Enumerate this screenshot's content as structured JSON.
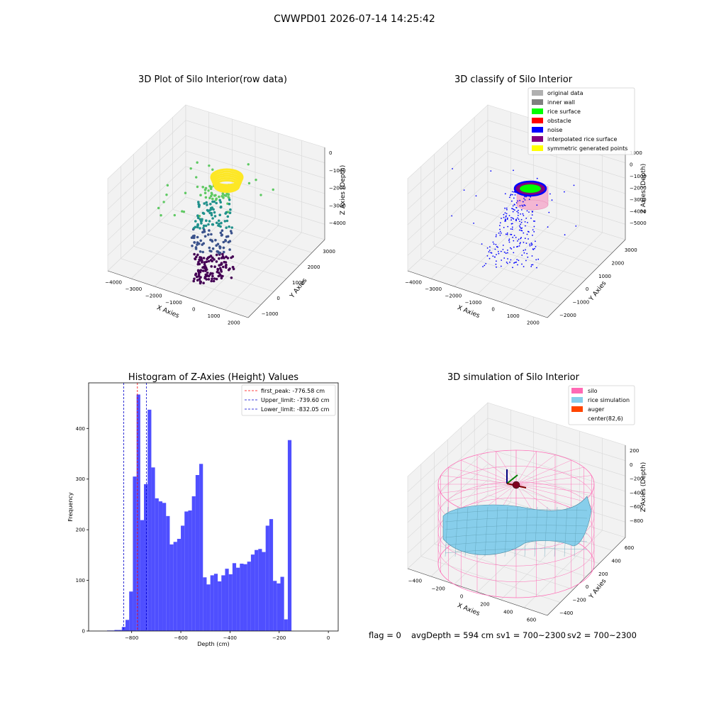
{
  "figure": {
    "suptitle": "CWWPD01 2026-07-14 14:25:42",
    "footer": {
      "flag": "flag = 0",
      "avg_depth": "avgDepth = 594 cm",
      "sv1": "sv1 = 700~2300",
      "sv2": "sv2 = 700~2300"
    }
  },
  "chart_data": [
    {
      "type": "scatter",
      "projection": "3d",
      "title": "3D Plot of Silo Interior(row data)",
      "xlabel": "X Axies",
      "ylabel": "Y Axies",
      "zlabel": "Z Axies (Depth)",
      "x_ticks": [
        "−4000",
        "−3000",
        "−2000",
        "−1000",
        "0",
        "1000",
        "2000"
      ],
      "y_ticks": [
        "−1000",
        "0",
        "1000",
        "2000",
        "3000"
      ],
      "z_ticks": [
        "0",
        "−1000",
        "−2000",
        "−3000",
        "−4000"
      ],
      "colormap": [
        "#440154",
        "#3b528b",
        "#21918c",
        "#5ec962",
        "#fde725"
      ]
    },
    {
      "type": "scatter",
      "projection": "3d",
      "title": "3D classify of Silo Interior",
      "xlabel": "X Axies",
      "ylabel": "Y Axies",
      "zlabel": "Z Axies (Depth)",
      "x_ticks": [
        "−4000",
        "−3000",
        "−2000",
        "−1000",
        "0",
        "1000",
        "2000"
      ],
      "y_ticks": [
        "−2000",
        "−1000",
        "0",
        "1000",
        "2000",
        "3000"
      ],
      "z_ticks": [
        "1000",
        "0",
        "−1000",
        "−2000",
        "−3000",
        "−4000",
        "−5000"
      ],
      "legend": [
        {
          "label": "original data",
          "color": "#b0b0b0"
        },
        {
          "label": "inner wall",
          "color": "#808080"
        },
        {
          "label": "rice surface",
          "color": "#00ff00"
        },
        {
          "label": "obstacle",
          "color": "#ff0000"
        },
        {
          "label": "noise",
          "color": "#0000ff"
        },
        {
          "label": "interpolated rice surface",
          "color": "#800080"
        },
        {
          "label": "symmetric generated points",
          "color": "#ffff00"
        }
      ]
    },
    {
      "type": "bar",
      "title": "Histogram of Z-Axies (Height) Values",
      "xlabel": "Depth (cm)",
      "ylabel": "Frequency",
      "bar_color": "#4f4fff",
      "xlim": [
        -975,
        40
      ],
      "ylim": [
        0,
        490
      ],
      "x_ticks": [
        -800,
        -600,
        -400,
        -200,
        0
      ],
      "y_ticks": [
        0,
        100,
        200,
        300,
        400
      ],
      "bin_width": 15,
      "bins": [
        {
          "x": -900,
          "value": 1
        },
        {
          "x": -885,
          "value": 1
        },
        {
          "x": -870,
          "value": 2
        },
        {
          "x": -855,
          "value": 2
        },
        {
          "x": -840,
          "value": 8
        },
        {
          "x": -825,
          "value": 22
        },
        {
          "x": -810,
          "value": 78
        },
        {
          "x": -795,
          "value": 305
        },
        {
          "x": -780,
          "value": 467
        },
        {
          "x": -765,
          "value": 219
        },
        {
          "x": -750,
          "value": 290
        },
        {
          "x": -735,
          "value": 437
        },
        {
          "x": -720,
          "value": 323
        },
        {
          "x": -705,
          "value": 262
        },
        {
          "x": -690,
          "value": 256
        },
        {
          "x": -675,
          "value": 253
        },
        {
          "x": -660,
          "value": 227
        },
        {
          "x": -645,
          "value": 171
        },
        {
          "x": -630,
          "value": 176
        },
        {
          "x": -615,
          "value": 182
        },
        {
          "x": -600,
          "value": 208
        },
        {
          "x": -585,
          "value": 236
        },
        {
          "x": -570,
          "value": 238
        },
        {
          "x": -555,
          "value": 266
        },
        {
          "x": -540,
          "value": 308
        },
        {
          "x": -525,
          "value": 330
        },
        {
          "x": -510,
          "value": 106
        },
        {
          "x": -495,
          "value": 92
        },
        {
          "x": -480,
          "value": 110
        },
        {
          "x": -465,
          "value": 113
        },
        {
          "x": -450,
          "value": 98
        },
        {
          "x": -435,
          "value": 110
        },
        {
          "x": -420,
          "value": 123
        },
        {
          "x": -405,
          "value": 112
        },
        {
          "x": -390,
          "value": 134
        },
        {
          "x": -375,
          "value": 125
        },
        {
          "x": -360,
          "value": 133
        },
        {
          "x": -345,
          "value": 132
        },
        {
          "x": -330,
          "value": 137
        },
        {
          "x": -315,
          "value": 151
        },
        {
          "x": -300,
          "value": 160
        },
        {
          "x": -285,
          "value": 162
        },
        {
          "x": -270,
          "value": 156
        },
        {
          "x": -255,
          "value": 208
        },
        {
          "x": -240,
          "value": 221
        },
        {
          "x": -225,
          "value": 99
        },
        {
          "x": -210,
          "value": 94
        },
        {
          "x": -195,
          "value": 107
        },
        {
          "x": -180,
          "value": 23
        },
        {
          "x": -165,
          "value": 377
        }
      ],
      "vlines": [
        {
          "x": -776.58,
          "color": "#ff0000",
          "label": "first_peak: -776.58 cm"
        },
        {
          "x": -739.6,
          "color": "#0000cc",
          "label": "Upper_limit: -739.60 cm"
        },
        {
          "x": -832.05,
          "color": "#0000cc",
          "label": "Lower_limit: -832.05 cm"
        }
      ]
    },
    {
      "type": "surface",
      "projection": "3d",
      "title": "3D simulation of Silo Interior",
      "xlabel": "X Axies",
      "ylabel": "Y Axies",
      "zlabel": "Z Axies (Depth)",
      "x_ticks": [
        "−400",
        "−200",
        "0",
        "200",
        "400",
        "600"
      ],
      "y_ticks": [
        "−400",
        "−200",
        "0",
        "200",
        "400",
        "600"
      ],
      "z_ticks": [
        "200",
        "0",
        "−200",
        "−400",
        "−600",
        "−800"
      ],
      "legend": [
        {
          "label": "silo",
          "color": "#ff69b4"
        },
        {
          "label": "rice simulation",
          "color": "#87ceeb"
        },
        {
          "label": "auger",
          "color": "#ff4500"
        },
        {
          "label": "center(82,6)",
          "color": ""
        }
      ]
    }
  ]
}
